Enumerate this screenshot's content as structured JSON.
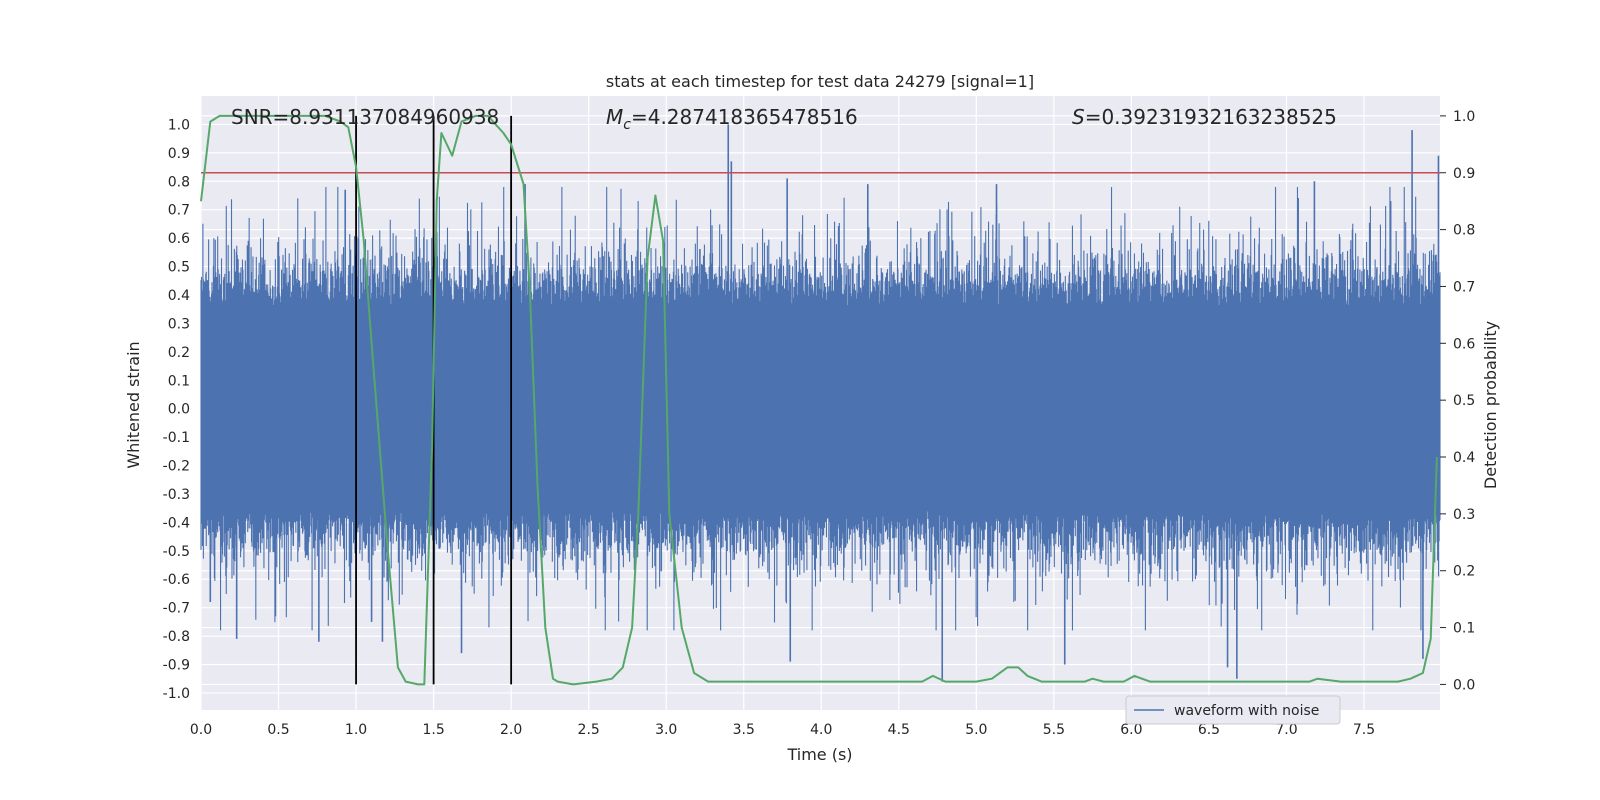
{
  "chart_data": {
    "type": "line",
    "title": "stats at each timestep for test data 24279 [signal=1]",
    "xlabel": "Time (s)",
    "ylabel_left": "Whitened strain",
    "ylabel_right": "Detection probability",
    "xlim": [
      0.0,
      7.99
    ],
    "ylim_left": [
      -1.06,
      1.1
    ],
    "ylim_right": [
      -0.045,
      1.035
    ],
    "xticks": [
      "0.0",
      "0.5",
      "1.0",
      "1.5",
      "2.0",
      "2.5",
      "3.0",
      "3.5",
      "4.0",
      "4.5",
      "5.0",
      "5.5",
      "6.0",
      "6.5",
      "7.0",
      "7.5"
    ],
    "yticks_left": [
      "-1.0",
      "-0.9",
      "-0.8",
      "-0.7",
      "-0.6",
      "-0.5",
      "-0.4",
      "-0.3",
      "-0.2",
      "-0.1",
      "0.0",
      "0.1",
      "0.2",
      "0.3",
      "0.4",
      "0.5",
      "0.6",
      "0.7",
      "0.8",
      "0.9",
      "1.0"
    ],
    "yticks_right": [
      "0.0",
      "0.1",
      "0.2",
      "0.3",
      "0.4",
      "0.5",
      "0.6",
      "0.7",
      "0.8",
      "0.9",
      "1.0"
    ],
    "grid": true,
    "annotations": {
      "snr": "SNR=8.931137084960938",
      "mc_symbol": "M",
      "mc_sub": "c",
      "mc_value": "=4.287418365478516",
      "s_symbol": "S",
      "s_value": "=0.39231932163238525"
    },
    "threshold": {
      "axis": "right",
      "value": 0.9,
      "color": "#c44e52"
    },
    "vertical_markers": [
      1.0,
      1.5,
      2.0
    ],
    "legend": {
      "placement": "lower-center-right",
      "entries": [
        "waveform with noise"
      ]
    },
    "series": [
      {
        "name": "waveform with noise",
        "axis": "left",
        "color": "#4c72b0",
        "style": "dense noise, core amplitude ~0.4, spikes up to ~1.0",
        "spikes": [
          {
            "x": 0.06,
            "y": -0.68
          },
          {
            "x": 0.23,
            "y": -0.81
          },
          {
            "x": 0.48,
            "y": -0.73
          },
          {
            "x": 0.76,
            "y": -0.82
          },
          {
            "x": 0.93,
            "y": 0.77
          },
          {
            "x": 1.1,
            "y": -0.75
          },
          {
            "x": 1.17,
            "y": -0.82
          },
          {
            "x": 1.5,
            "y": 0.84
          },
          {
            "x": 1.68,
            "y": -0.86
          },
          {
            "x": 2.0,
            "y": 0.85
          },
          {
            "x": 2.09,
            "y": 0.79
          },
          {
            "x": 3.4,
            "y": 1.0
          },
          {
            "x": 3.42,
            "y": 0.87
          },
          {
            "x": 3.78,
            "y": 0.81
          },
          {
            "x": 3.8,
            "y": -0.89
          },
          {
            "x": 4.3,
            "y": 0.79
          },
          {
            "x": 4.78,
            "y": -0.96
          },
          {
            "x": 5.13,
            "y": 0.79
          },
          {
            "x": 5.57,
            "y": -0.9
          },
          {
            "x": 6.62,
            "y": -0.91
          },
          {
            "x": 6.68,
            "y": -0.95
          },
          {
            "x": 7.18,
            "y": 0.8
          },
          {
            "x": 7.81,
            "y": 0.98
          },
          {
            "x": 7.88,
            "y": -0.88
          },
          {
            "x": 7.98,
            "y": 0.89
          }
        ]
      },
      {
        "name": "",
        "axis": "right",
        "color": "#55a868",
        "x": [
          0.0,
          0.06,
          0.12,
          0.2,
          0.5,
          0.8,
          0.9,
          0.95,
          1.0,
          1.05,
          1.1,
          1.2,
          1.27,
          1.32,
          1.4,
          1.44,
          1.49,
          1.52,
          1.55,
          1.62,
          1.68,
          1.77,
          1.85,
          1.95,
          2.0,
          2.08,
          2.12,
          2.17,
          2.22,
          2.27,
          2.3,
          2.4,
          2.55,
          2.65,
          2.72,
          2.78,
          2.82,
          2.88,
          2.93,
          2.98,
          3.02,
          3.1,
          3.18,
          3.27,
          3.5,
          4.0,
          4.5,
          4.65,
          4.72,
          4.8,
          5.0,
          5.1,
          5.2,
          5.27,
          5.33,
          5.42,
          5.55,
          5.7,
          5.75,
          5.82,
          5.95,
          6.02,
          6.12,
          6.3,
          6.55,
          6.8,
          7.15,
          7.2,
          7.35,
          7.5,
          7.65,
          7.72,
          7.8,
          7.88,
          7.93,
          7.97
        ],
        "values": [
          0.85,
          0.99,
          1.0,
          1.0,
          1.0,
          1.0,
          0.99,
          0.98,
          0.91,
          0.78,
          0.6,
          0.25,
          0.03,
          0.005,
          0.0,
          0.0,
          0.42,
          0.85,
          0.97,
          0.93,
          0.99,
          1.0,
          1.0,
          0.97,
          0.95,
          0.88,
          0.7,
          0.35,
          0.1,
          0.01,
          0.005,
          0.0,
          0.005,
          0.01,
          0.03,
          0.1,
          0.3,
          0.75,
          0.86,
          0.78,
          0.3,
          0.1,
          0.02,
          0.005,
          0.005,
          0.005,
          0.005,
          0.005,
          0.015,
          0.005,
          0.005,
          0.01,
          0.03,
          0.03,
          0.015,
          0.005,
          0.005,
          0.005,
          0.01,
          0.005,
          0.005,
          0.015,
          0.005,
          0.005,
          0.005,
          0.005,
          0.005,
          0.01,
          0.005,
          0.005,
          0.005,
          0.005,
          0.01,
          0.02,
          0.08,
          0.4
        ]
      }
    ]
  }
}
